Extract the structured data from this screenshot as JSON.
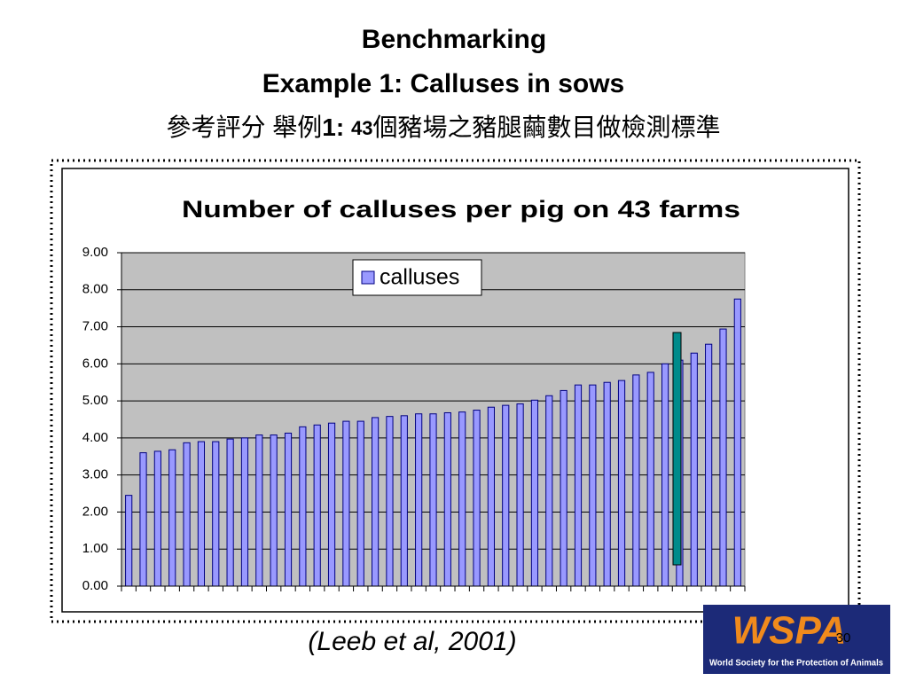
{
  "slide": {
    "title_lines": [
      "Benchmarking",
      "Example 1: Calluses in sows"
    ],
    "title_cjk_a": "參考評分  舉例",
    "title_cjk_b": "1: ",
    "title_cjk_c": "43",
    "title_cjk_d": "個豬場之豬腿繭數目做檢測標準",
    "citation": "(Leeb et al, 2001)",
    "logo_text": "WSPA",
    "logo_caption": "World Society for the Protection of Animals",
    "page_number": "30"
  },
  "chart_data": {
    "type": "bar",
    "title": "Number of calluses per pig on 43 farms",
    "categories": [
      null,
      null,
      null,
      null,
      null,
      null,
      null,
      null,
      null,
      null,
      null,
      null,
      null,
      null,
      null,
      null,
      null,
      null,
      null,
      null,
      null,
      null,
      null,
      null,
      null,
      null,
      null,
      null,
      null,
      null,
      null,
      null,
      null,
      null,
      null,
      null,
      null,
      null,
      null,
      null,
      null,
      null,
      null
    ],
    "series": [
      {
        "name": "calluses",
        "color": "#9999ff",
        "values": [
          2.45,
          3.6,
          3.64,
          3.68,
          3.87,
          3.9,
          3.9,
          3.97,
          4.0,
          4.08,
          4.08,
          4.13,
          4.3,
          4.35,
          4.4,
          4.45,
          4.45,
          4.55,
          4.58,
          4.6,
          4.65,
          4.65,
          4.68,
          4.7,
          4.75,
          4.83,
          4.88,
          4.92,
          5.02,
          5.14,
          5.28,
          5.43,
          5.43,
          5.5,
          5.55,
          5.7,
          5.77,
          6.0,
          6.1,
          6.29,
          6.53,
          6.94,
          7.75
        ]
      }
    ],
    "ylim": [
      0,
      9
    ],
    "yticks": [
      {
        "value": 0,
        "label": "0.00"
      },
      {
        "value": 1,
        "label": "1.00"
      },
      {
        "value": 2,
        "label": "2.00"
      },
      {
        "value": 3,
        "label": "3.00"
      },
      {
        "value": 4,
        "label": "4.00"
      },
      {
        "value": 5,
        "label": "5.00"
      },
      {
        "value": 6,
        "label": "6.00"
      },
      {
        "value": 7,
        "label": "7.00"
      },
      {
        "value": 8,
        "label": "8.00"
      },
      {
        "value": 9,
        "label": "9.00"
      }
    ],
    "grid": true,
    "plot_background": "#c0c0c0"
  }
}
